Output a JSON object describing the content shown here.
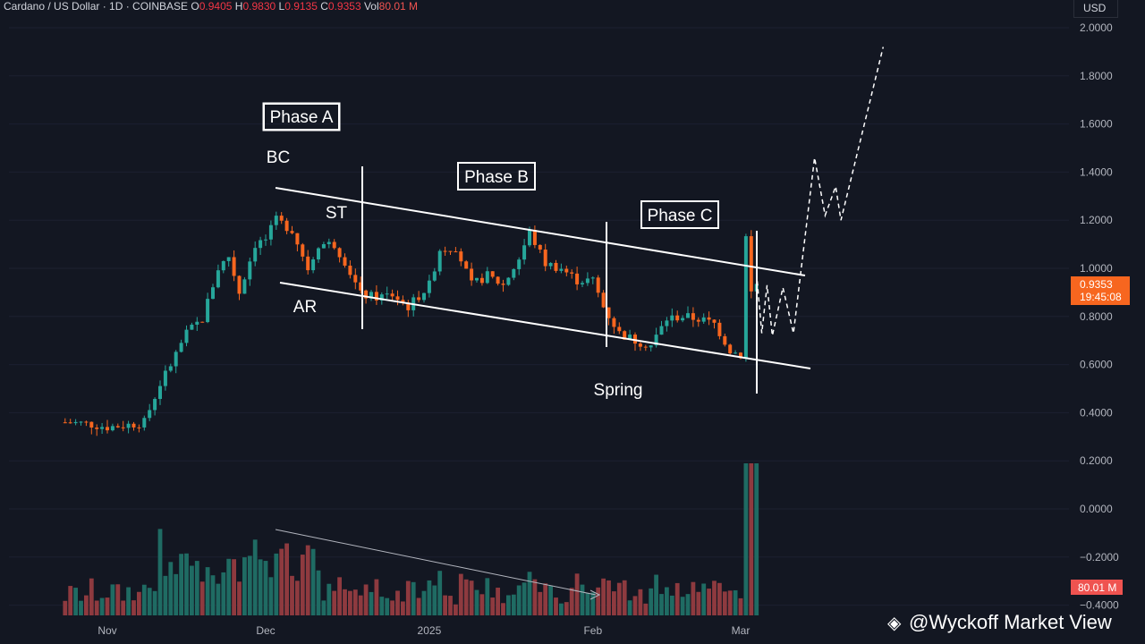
{
  "header": {
    "symbol": "Cardano / US Dollar · 1D · COINBASE",
    "open_label": "O",
    "open": "0.9405",
    "high_label": "H",
    "high": "0.9830",
    "low_label": "L",
    "low": "0.9135",
    "close_label": "C",
    "close": "0.9353",
    "vol_label": "Vol",
    "vol": "80.01 M"
  },
  "currency": "USD",
  "watermark": "@Wyckoff Market View",
  "colors": {
    "background": "#131722",
    "up": "#26a69a",
    "down": "#ef5350",
    "orange": "#f7661f",
    "annotation": "#ffffff",
    "axis_text": "#b2b5be"
  },
  "chart_data": {
    "type": "candlestick",
    "symbol": "ADA/USD",
    "interval": "1D",
    "y_axis": {
      "ticks": [
        2.0,
        1.8,
        1.6,
        1.4,
        1.2,
        1.0,
        0.8,
        0.6,
        0.4,
        0.2,
        0.0,
        -0.2,
        -0.4
      ],
      "tick_labels": [
        "2.0000",
        "1.8000",
        "1.6000",
        "1.4000",
        "1.2000",
        "1.0000",
        "0.8000",
        "0.6000",
        "0.4000",
        "0.2000",
        "0.0000",
        "−0.2000",
        "−0.4000"
      ],
      "range": [
        -0.4,
        2.0
      ]
    },
    "x_axis": {
      "tick_labels": [
        "Nov",
        "Dec",
        "2025",
        "Feb",
        "Mar"
      ],
      "tick_dates": [
        "2024-11-01",
        "2024-12-01",
        "2025-01-01",
        "2025-02-01",
        "2025-03-01"
      ]
    },
    "last_price": {
      "value": 0.9353,
      "label": "0.9353",
      "countdown": "19:45:08"
    },
    "volume_label": "80.01 M",
    "close_series_approx": [
      [
        "2024-10-24",
        0.36
      ],
      [
        "2024-10-28",
        0.355
      ],
      [
        "2024-11-01",
        0.34
      ],
      [
        "2024-11-05",
        0.35
      ],
      [
        "2024-11-08",
        0.36
      ],
      [
        "2024-11-11",
        0.52
      ],
      [
        "2024-11-13",
        0.6
      ],
      [
        "2024-11-16",
        0.73
      ],
      [
        "2024-11-19",
        0.79
      ],
      [
        "2024-11-22",
        1.0
      ],
      [
        "2024-11-24",
        1.05
      ],
      [
        "2024-11-26",
        0.9
      ],
      [
        "2024-11-29",
        1.1
      ],
      [
        "2024-12-01",
        1.12
      ],
      [
        "2024-12-03",
        1.2
      ],
      [
        "2024-12-06",
        1.16
      ],
      [
        "2024-12-09",
        1.0
      ],
      [
        "2024-12-11",
        1.1
      ],
      [
        "2024-12-14",
        1.1
      ],
      [
        "2024-12-16",
        1.03
      ],
      [
        "2024-12-19",
        0.89
      ],
      [
        "2024-12-22",
        0.88
      ],
      [
        "2024-12-25",
        0.89
      ],
      [
        "2024-12-28",
        0.84
      ],
      [
        "2025-01-01",
        0.93
      ],
      [
        "2025-01-03",
        1.08
      ],
      [
        "2025-01-06",
        1.09
      ],
      [
        "2025-01-09",
        0.93
      ],
      [
        "2025-01-12",
        0.97
      ],
      [
        "2025-01-15",
        0.93
      ],
      [
        "2025-01-18",
        1.04
      ],
      [
        "2025-01-20",
        1.15
      ],
      [
        "2025-01-23",
        1.02
      ],
      [
        "2025-01-26",
        1.0
      ],
      [
        "2025-01-29",
        0.95
      ],
      [
        "2025-02-01",
        0.95
      ],
      [
        "2025-02-03",
        0.84
      ],
      [
        "2025-02-06",
        0.73
      ],
      [
        "2025-02-09",
        0.7
      ],
      [
        "2025-02-12",
        0.68
      ],
      [
        "2025-02-15",
        0.79
      ],
      [
        "2025-02-18",
        0.8
      ],
      [
        "2025-02-21",
        0.79
      ],
      [
        "2025-02-24",
        0.77
      ],
      [
        "2025-02-27",
        0.66
      ],
      [
        "2025-03-01",
        0.64
      ],
      [
        "2025-03-02",
        1.13
      ],
      [
        "2025-03-03",
        0.9
      ],
      [
        "2025-03-04",
        0.94
      ]
    ],
    "projection_path": [
      [
        "2025-03-04",
        0.98
      ],
      [
        "2025-03-05",
        0.73
      ],
      [
        "2025-03-06",
        0.93
      ],
      [
        "2025-03-07",
        0.72
      ],
      [
        "2025-03-09",
        0.92
      ],
      [
        "2025-03-11",
        0.73
      ],
      [
        "2025-03-15",
        1.46
      ],
      [
        "2025-03-17",
        1.22
      ],
      [
        "2025-03-19",
        1.34
      ],
      [
        "2025-03-20",
        1.2
      ],
      [
        "2025-03-28",
        1.92
      ]
    ],
    "annotations": {
      "labels": [
        "Phase A",
        "Phase B",
        "Phase C",
        "BC",
        "ST",
        "AR",
        "Spring"
      ]
    }
  }
}
